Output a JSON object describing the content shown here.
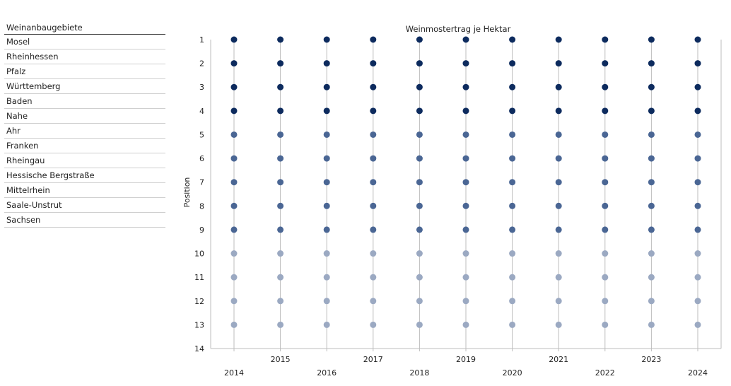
{
  "legend": {
    "header": "Weinanbaugebiete",
    "items": [
      "Mosel",
      "Rheinhessen",
      "Pfalz",
      "Württemberg",
      "Baden",
      "Nahe",
      "Ahr",
      "Franken",
      "Rheingau",
      "Hessische Bergstraße",
      "Mittelrhein",
      "Saale-Unstrut",
      "Sachsen"
    ]
  },
  "chart_data": {
    "type": "scatter",
    "title": "Weinmostertrag je Hektar",
    "xlabel": "",
    "ylabel": "Position",
    "x": [
      2014,
      2015,
      2016,
      2017,
      2018,
      2019,
      2020,
      2021,
      2022,
      2023,
      2024
    ],
    "yticks": [
      1,
      2,
      3,
      4,
      5,
      6,
      7,
      8,
      9,
      10,
      11,
      12,
      13,
      14
    ],
    "ylim": [
      1,
      14
    ],
    "y_reversed": true,
    "grid": "vertical",
    "series_positions": [
      1,
      2,
      3,
      4,
      5,
      6,
      7,
      8,
      9,
      10,
      11,
      12,
      13
    ],
    "colors": {
      "top": "#0d2b5e",
      "middle": "#4a6694",
      "lower": "#9ba9c2",
      "axis": "#bdbdbd"
    },
    "color_by_position": [
      "top",
      "top",
      "top",
      "top",
      "middle",
      "middle",
      "middle",
      "middle",
      "middle",
      "lower",
      "lower",
      "lower",
      "lower"
    ]
  }
}
